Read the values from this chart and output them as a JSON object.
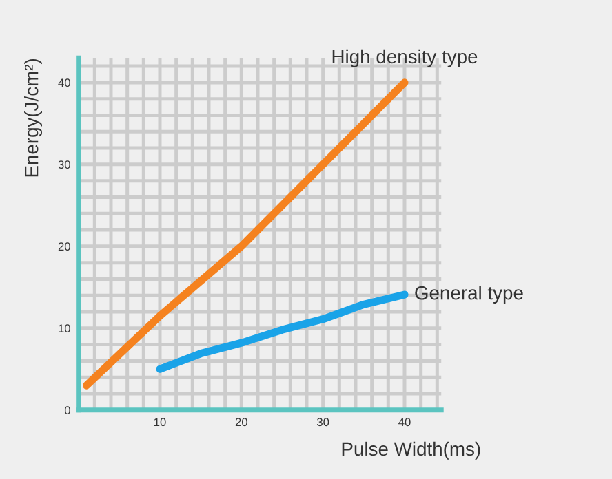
{
  "chart_data": {
    "type": "line",
    "xlabel": "Pulse Width(ms)",
    "ylabel": "Energy(J/cm²)",
    "xlim": [
      0,
      44.5
    ],
    "ylim": [
      0,
      43
    ],
    "xticks": [
      10,
      20,
      30,
      40
    ],
    "yticks": [
      0,
      10,
      20,
      30,
      40
    ],
    "grid": true,
    "legend": false,
    "marker": "none",
    "line_style": "solid",
    "series": [
      {
        "name": "High density type",
        "color": "#f5821f",
        "x": [
          1,
          10,
          20,
          30,
          40
        ],
        "values": [
          3,
          11.5,
          20,
          30,
          40
        ]
      },
      {
        "name": "General type",
        "color": "#1aa3e8",
        "x": [
          10,
          15,
          20,
          25,
          30,
          35,
          40
        ],
        "values": [
          5,
          6.9,
          8.2,
          9.8,
          11.1,
          12.9,
          14.1
        ]
      }
    ]
  }
}
